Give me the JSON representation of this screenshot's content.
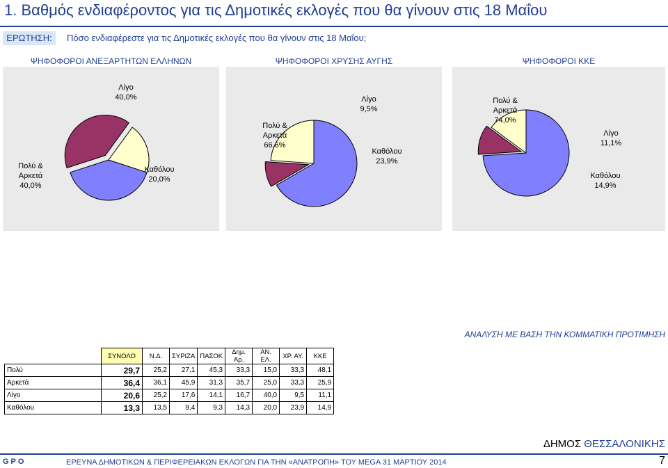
{
  "header": {
    "title": "1.   Βαθμός ενδιαφέροντος για τις Δημοτικές εκλογές που θα γίνουν στις 18 Μαΐου",
    "question_label": "ΕΡΩΤΗΣΗ:",
    "question_text": "Πόσο ενδιαφέρεστε για τις Δημοτικές εκλογές που θα γίνουν στις 18 Μαΐου;"
  },
  "colors": {
    "accent": "#1f3f94",
    "slice_polu": "#8080ff",
    "slice_ligo": "#993366",
    "slice_katholou": "#ffffcc",
    "panel_bg": "#eaeaea",
    "total_header_bg": "#fffbb0"
  },
  "chart_data": [
    {
      "type": "pie",
      "title": "ΨΗΦΟΦΟΡΟΙ ΑΝΕΞΑΡΤΗΤΩΝ ΕΛΛΗΝΩΝ",
      "categories": [
        "Πολύ & Αρκετά",
        "Λίγο",
        "Καθόλου"
      ],
      "values": [
        40.0,
        40.0,
        20.0
      ],
      "labels": [
        "40,0%",
        "40,0%",
        "20,0%"
      ]
    },
    {
      "type": "pie",
      "title": "ΨΗΦΟΦΟΡΟΙ ΧΡΥΣΗΣ ΑΥΓΗΣ",
      "categories": [
        "Πολύ & Αρκετά",
        "Λίγο",
        "Καθόλου"
      ],
      "values": [
        66.6,
        9.5,
        23.9
      ],
      "labels": [
        "66,6%",
        "9,5%",
        "23,9%"
      ]
    },
    {
      "type": "pie",
      "title": "ΨΗΦΟΦΟΡΟΙ ΚΚΕ",
      "categories": [
        "Πολύ & Αρκετά",
        "Λίγο",
        "Καθόλου"
      ],
      "values": [
        74.0,
        11.1,
        14.9
      ],
      "labels": [
        "74,0%",
        "11,1%",
        "14,9%"
      ]
    }
  ],
  "analysis_title": "ΑΝΑΛΥΣΗ ΜΕ ΒΑΣΗ ΤΗΝ ΚΟΜΜΑΤΙΚΗ ΠΡΟΤΙΜΗΣΗ",
  "table": {
    "columns": [
      "ΣΥΝΟΛΟ",
      "Ν.Δ.",
      "ΣΥΡΙΖΑ",
      "ΠΑΣΟΚ",
      "Δημ. Αρ.",
      "ΑΝ. ΕΛ.",
      "ΧΡ. ΑΥ.",
      "ΚΚΕ"
    ],
    "rows": [
      {
        "label": "Πολύ",
        "values": [
          "29,7",
          "25,2",
          "27,1",
          "45,3",
          "33,3",
          "15,0",
          "33,3",
          "48,1"
        ]
      },
      {
        "label": "Αρκετά",
        "values": [
          "36,4",
          "36,1",
          "45,9",
          "31,3",
          "35,7",
          "25,0",
          "33,3",
          "25,9"
        ]
      },
      {
        "label": "Λίγο",
        "values": [
          "20,6",
          "25,2",
          "17,6",
          "14,1",
          "16,7",
          "40,0",
          "9,5",
          "11,1"
        ]
      },
      {
        "label": "Καθόλου",
        "values": [
          "13,3",
          "13,5",
          "9,4",
          "9,3",
          "14,3",
          "20,0",
          "23,9",
          "14,9"
        ]
      }
    ]
  },
  "footer": {
    "municipality_prefix": "ΔΗΜΟΣ ",
    "municipality_city": "ΘΕΣΣΑΛΟΝΙΚΗΣ",
    "logo_text": "GPO",
    "text": "ΕΡΕΥΝΑ ΔΗΜΟΤΙΚΩΝ & ΠΕΡΙΦΕΡΕΙΑΚΩΝ ΕΚΛΟΓΩΝ ΓΙΑ ΤΗΝ «ΑΝΑΤΡΟΠΗ» ΤΟΥ MEGA 31 ΜΑΡΤΙΟΥ 2014",
    "page_number": "7"
  }
}
